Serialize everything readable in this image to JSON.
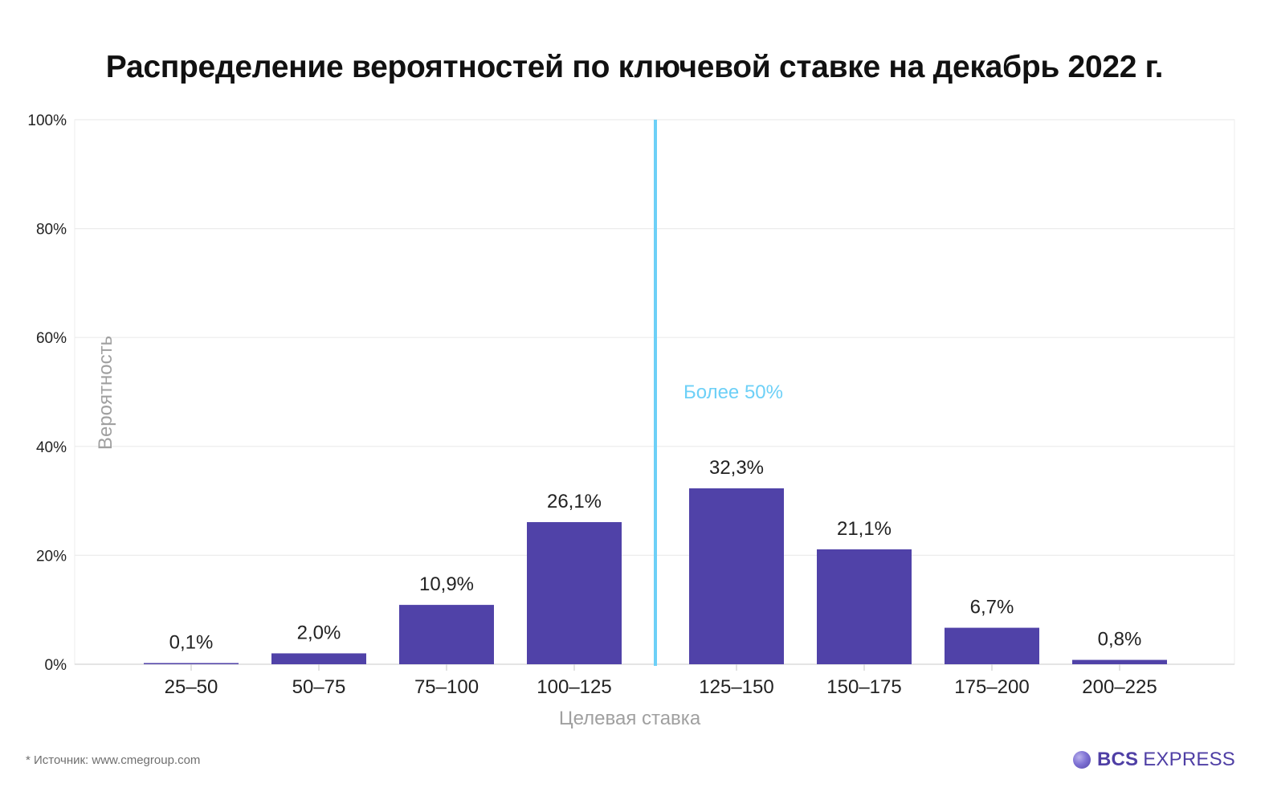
{
  "chart_data": {
    "type": "bar",
    "title": "Распределение вероятностей по ключевой ставке на декабрь 2022 г.",
    "xlabel": "Целевая ставка",
    "ylabel": "Вероятность",
    "categories": [
      "25–50",
      "50–75",
      "75–100",
      "100–125",
      "125–150",
      "150–175",
      "175–200",
      "200–225"
    ],
    "values": [
      0.1,
      2.0,
      10.9,
      26.1,
      32.3,
      21.1,
      6.7,
      0.8
    ],
    "value_labels": [
      "0,1%",
      "2,0%",
      "10,9%",
      "26,1%",
      "32,3%",
      "21,1%",
      "6,7%",
      "0,8%"
    ],
    "ylim": [
      0,
      100
    ],
    "yticks": [
      0,
      20,
      40,
      60,
      80,
      100
    ],
    "ytick_labels": [
      "0%",
      "20%",
      "40%",
      "60%",
      "80%",
      "100%"
    ],
    "grid": true,
    "bar_color": "#5042a8",
    "annotation": {
      "text": "Более 50%",
      "color": "#6dd0f7",
      "divider_between": [
        "100–125",
        "125–150"
      ]
    }
  },
  "source": "* Источник: www.cmegroup.com",
  "logo": {
    "brand": "BCS",
    "product": "EXPRESS",
    "color": "#4f3fa5"
  }
}
